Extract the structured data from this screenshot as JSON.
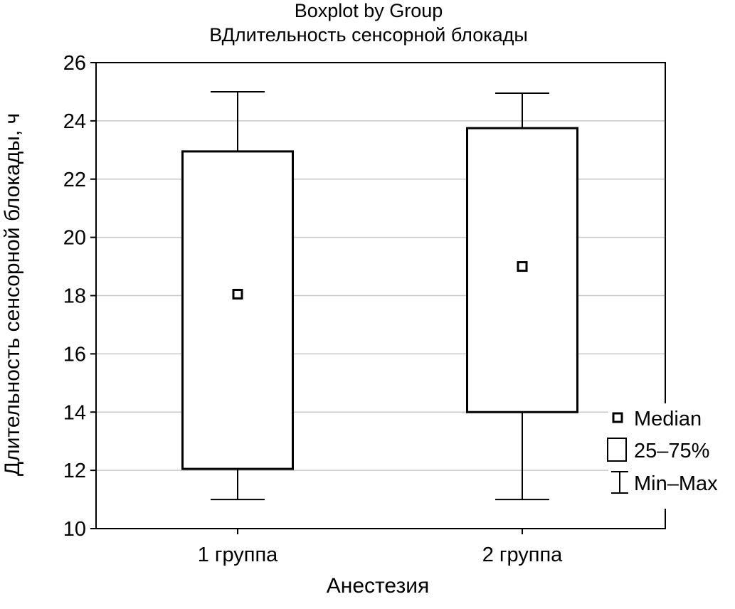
{
  "chart_data": {
    "type": "boxplot",
    "title": "Boxplot by Group",
    "subtitle": "ВДлительность сенсорной блокады",
    "xlabel": "Анестезия",
    "ylabel": "Длительность сенсорной блокады, ч",
    "ylim": [
      10,
      26
    ],
    "yticks": [
      "10",
      "12",
      "14",
      "16",
      "18",
      "20",
      "22",
      "24",
      "26"
    ],
    "grid": true,
    "legend_position": "right",
    "legend": [
      {
        "key": "median",
        "label": "Median"
      },
      {
        "key": "iqr",
        "label": "25–75%"
      },
      {
        "key": "range",
        "label": "Min–Max"
      }
    ],
    "categories": [
      "1 группа",
      "2 группа"
    ],
    "groups": [
      {
        "category": "1 группа",
        "min": 11,
        "q1": 12.05,
        "median": 18.05,
        "q3": 22.95,
        "max": 25
      },
      {
        "category": "2 группа",
        "min": 11,
        "q1": 14,
        "median": 19,
        "q3": 23.75,
        "max": 24.95
      }
    ]
  }
}
